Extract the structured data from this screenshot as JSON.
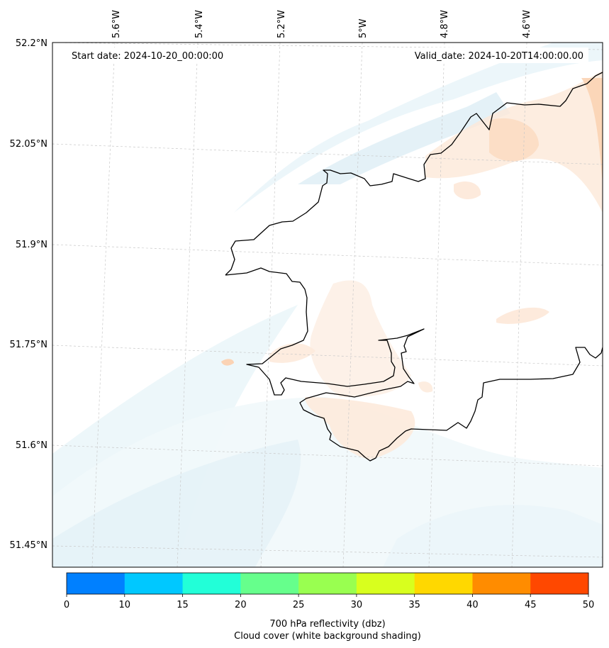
{
  "map": {
    "start_date": "Start date: 2024-10-20_00:00:00",
    "valid_date": "Valid_date: 2024-10-20T14:00:00.00",
    "lon_labels": [
      "5.6°W",
      "5.4°W",
      "5.2°W",
      "5°W",
      "4.8°W",
      "4.6°W"
    ],
    "lat_labels": [
      "52.2°N",
      "52.05°N",
      "51.9°N",
      "51.75°N",
      "51.6°N",
      "51.45°N"
    ],
    "coastline_color": "#000000",
    "shading_colors": {
      "cloud_cover": "#d8eef5",
      "reflectivity_low": "#fde0c8"
    }
  },
  "colorbar": {
    "label_line1": "700 hPa reflectivity (dbz)",
    "label_line2": "Cloud cover (white background shading)",
    "ticks": [
      "0",
      "10",
      "15",
      "20",
      "25",
      "30",
      "35",
      "40",
      "45",
      "50"
    ],
    "colors": [
      "#0080ff",
      "#00c8ff",
      "#22ffd8",
      "#66ff8c",
      "#99ff50",
      "#d8ff1e",
      "#ffd800",
      "#ff8c00",
      "#ff4800"
    ]
  }
}
